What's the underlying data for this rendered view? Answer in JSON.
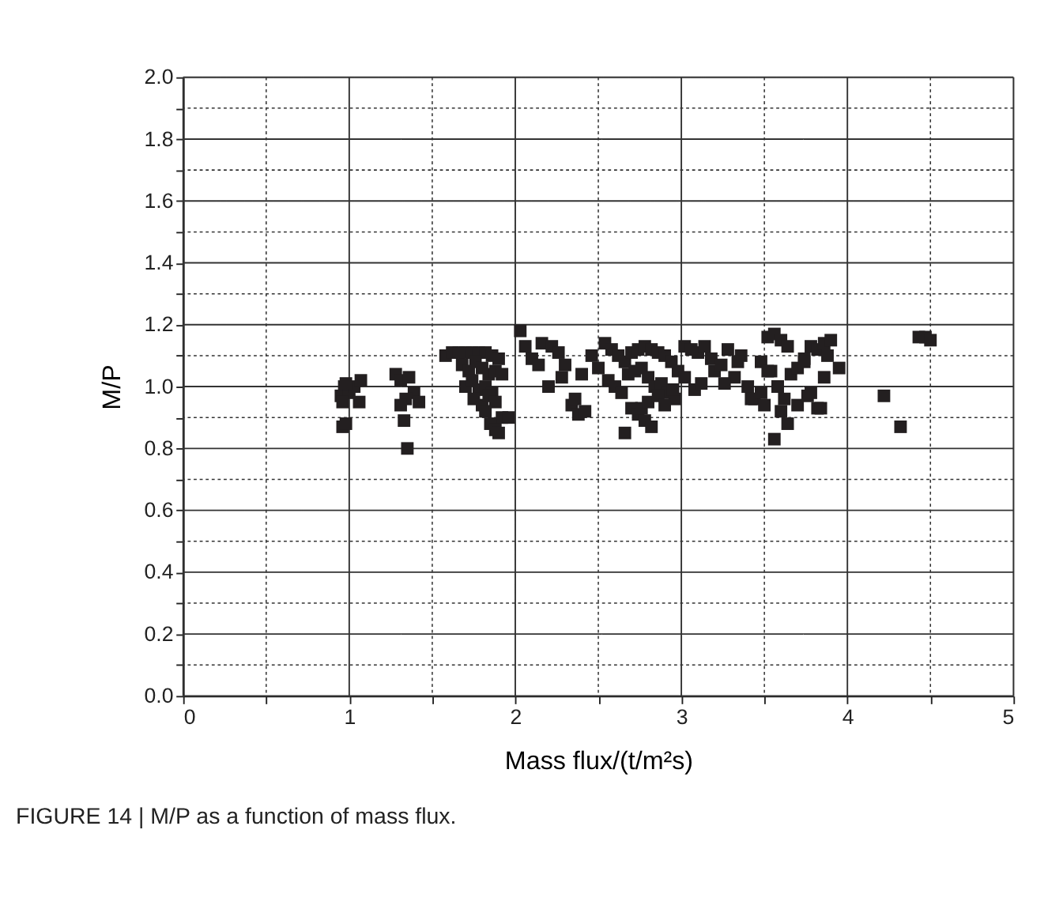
{
  "chart_data": {
    "type": "scatter",
    "xlabel": "Mass flux/(t/m²s)",
    "ylabel": "M/P",
    "annotations": [
      "FIGURE 14 | M/P as a function of mass flux."
    ],
    "xlim": [
      0,
      5
    ],
    "ylim": [
      0,
      2
    ],
    "xticks": [
      0,
      {
        "value": 0.5,
        "label": null
      },
      1,
      {
        "value": 1.5,
        "label": null
      },
      2,
      {
        "value": 2.5,
        "label": null
      },
      3,
      {
        "value": 3.5,
        "label": null
      },
      4,
      {
        "value": 4.5,
        "label": null
      },
      5
    ],
    "yticks": [
      {
        "value": 0,
        "label": "0.0"
      },
      {
        "value": 0.1,
        "label": null
      },
      0.2,
      {
        "value": 0.3,
        "label": null
      },
      0.4,
      {
        "value": 0.5,
        "label": null
      },
      0.6,
      {
        "value": 0.7,
        "label": null
      },
      0.8,
      {
        "value": 0.9,
        "label": null
      },
      {
        "value": 1,
        "label": "1.0"
      },
      {
        "value": 1.1,
        "label": null
      },
      1.2,
      {
        "value": 1.3,
        "label": null
      },
      1.4,
      {
        "value": 1.5,
        "label": null
      },
      1.6,
      {
        "value": 1.7,
        "label": null
      },
      1.8,
      {
        "value": 1.9,
        "label": null
      },
      {
        "value": 2,
        "label": "2.0"
      }
    ],
    "grid": true,
    "marker": "square",
    "legend": false,
    "series": [
      {
        "color": "#231f20",
        "x": [
          0.95,
          0.97,
          1.0,
          0.96,
          0.98,
          1.03,
          1.07,
          1.06,
          0.96,
          0.98,
          1.28,
          1.31,
          1.36,
          1.39,
          1.34,
          1.42,
          1.31,
          1.33,
          1.35,
          1.58,
          1.62,
          1.66,
          1.7,
          1.74,
          1.78,
          1.82,
          1.86,
          1.9,
          1.68,
          1.72,
          1.76,
          1.8,
          1.84,
          1.88,
          1.92,
          1.7,
          1.74,
          1.78,
          1.82,
          1.86,
          1.75,
          1.8,
          1.84,
          1.88,
          1.92,
          1.96,
          1.85,
          1.88,
          1.82,
          1.9,
          2.03,
          2.06,
          2.1,
          2.16,
          2.22,
          2.26,
          2.3,
          2.14,
          2.2,
          2.28,
          2.34,
          2.38,
          2.42,
          2.46,
          2.5,
          2.36,
          2.4,
          2.54,
          2.58,
          2.62,
          2.66,
          2.7,
          2.74,
          2.78,
          2.82,
          2.86,
          2.9,
          2.94,
          2.98,
          2.56,
          2.6,
          2.64,
          2.68,
          2.72,
          2.76,
          2.8,
          2.84,
          2.88,
          2.92,
          2.96,
          2.7,
          2.74,
          2.78,
          2.82,
          2.76,
          2.8,
          2.66,
          2.86,
          2.9,
          2.95,
          3.02,
          3.06,
          3.1,
          3.14,
          3.18,
          3.02,
          3.08,
          3.12,
          3.2,
          3.24,
          3.28,
          3.32,
          3.36,
          3.4,
          3.44,
          3.48,
          3.52,
          3.56,
          3.6,
          3.64,
          3.26,
          3.34,
          3.42,
          3.5,
          3.58,
          3.66,
          3.7,
          3.74,
          3.78,
          3.82,
          3.86,
          3.9,
          3.95,
          3.54,
          3.6,
          3.64,
          3.56,
          3.48,
          3.52,
          3.58,
          3.62,
          3.7,
          3.76,
          3.82,
          3.86,
          3.84,
          3.78,
          3.88,
          3.74,
          4.22,
          4.32,
          4.43,
          4.47,
          4.5
        ],
        "values": [
          0.97,
          1.0,
          0.98,
          0.87,
          0.88,
          1.0,
          1.02,
          0.95,
          0.95,
          1.01,
          1.04,
          1.02,
          1.03,
          0.98,
          0.96,
          0.95,
          0.94,
          0.89,
          0.8,
          1.1,
          1.11,
          1.11,
          1.11,
          1.11,
          1.11,
          1.11,
          1.1,
          1.09,
          1.07,
          1.05,
          1.08,
          1.06,
          1.04,
          1.05,
          1.04,
          1.0,
          1.02,
          0.99,
          1.0,
          0.98,
          0.96,
          0.94,
          0.97,
          0.95,
          0.9,
          0.9,
          0.88,
          0.86,
          0.92,
          0.85,
          1.18,
          1.13,
          1.09,
          1.14,
          1.13,
          1.11,
          1.07,
          1.07,
          1.0,
          1.03,
          0.94,
          0.91,
          0.92,
          1.1,
          1.06,
          0.96,
          1.04,
          1.14,
          1.12,
          1.1,
          1.08,
          1.11,
          1.12,
          1.13,
          1.12,
          1.11,
          1.1,
          1.08,
          1.05,
          1.02,
          1.0,
          0.98,
          1.04,
          1.05,
          1.06,
          1.03,
          1.0,
          1.01,
          0.98,
          0.96,
          0.93,
          0.91,
          0.89,
          0.87,
          0.93,
          0.95,
          0.85,
          0.97,
          0.94,
          0.99,
          1.13,
          1.12,
          1.11,
          1.13,
          1.09,
          1.03,
          0.99,
          1.01,
          1.05,
          1.07,
          1.12,
          1.03,
          1.1,
          1.0,
          0.96,
          1.08,
          1.16,
          1.17,
          1.15,
          1.13,
          1.01,
          1.08,
          0.96,
          0.94,
          1.0,
          1.04,
          1.06,
          1.09,
          1.13,
          1.12,
          1.14,
          1.15,
          1.06,
          1.05,
          0.92,
          0.88,
          0.83,
          0.98,
          1.05,
          1.0,
          0.96,
          0.94,
          0.97,
          0.93,
          1.03,
          0.93,
          0.98,
          1.1,
          1.08,
          0.97,
          0.87,
          1.16,
          1.16,
          1.15
        ]
      }
    ]
  }
}
